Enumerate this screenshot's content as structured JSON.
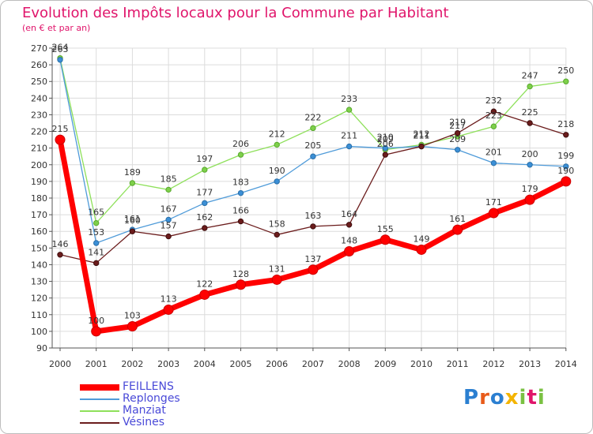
{
  "title": "Evolution des Impôts locaux pour la Commune par Habitant",
  "subtitle": "(en € et par an)",
  "logo": "Proxiti",
  "chart_data": {
    "type": "line",
    "title": "Evolution des Impôts locaux pour la Commune par Habitant",
    "ylabel": "(en € et par an)",
    "xlabel": "",
    "x": [
      "2000",
      "2001",
      "2002",
      "2003",
      "2004",
      "2005",
      "2006",
      "2007",
      "2008",
      "2009",
      "2010",
      "2011",
      "2012",
      "2013",
      "2014"
    ],
    "ylim": [
      90,
      270
    ],
    "yticks": [
      90,
      100,
      110,
      120,
      130,
      140,
      150,
      160,
      170,
      180,
      190,
      200,
      210,
      220,
      230,
      240,
      250,
      260,
      270
    ],
    "grid": true,
    "legend_position": "bottom-left",
    "series": [
      {
        "name": "FEILLENS",
        "color": "#ff0000",
        "values": [
          215,
          100,
          103,
          113,
          122,
          128,
          131,
          137,
          148,
          155,
          149,
          161,
          171,
          179,
          190
        ]
      },
      {
        "name": "Replonges",
        "color": "#4f9bd9",
        "values": [
          263,
          153,
          161,
          167,
          177,
          183,
          190,
          205,
          211,
          210,
          211,
          209,
          201,
          200,
          199
        ]
      },
      {
        "name": "Manziat",
        "color": "#8ee05a",
        "values": [
          264,
          165,
          189,
          185,
          197,
          206,
          212,
          222,
          233,
          209,
          212,
          217,
          223,
          247,
          250
        ]
      },
      {
        "name": "Vésines",
        "color": "#6b1c1c",
        "values": [
          146,
          141,
          160,
          157,
          162,
          166,
          158,
          163,
          164,
          206,
          211,
          219,
          232,
          225,
          218
        ]
      }
    ]
  }
}
